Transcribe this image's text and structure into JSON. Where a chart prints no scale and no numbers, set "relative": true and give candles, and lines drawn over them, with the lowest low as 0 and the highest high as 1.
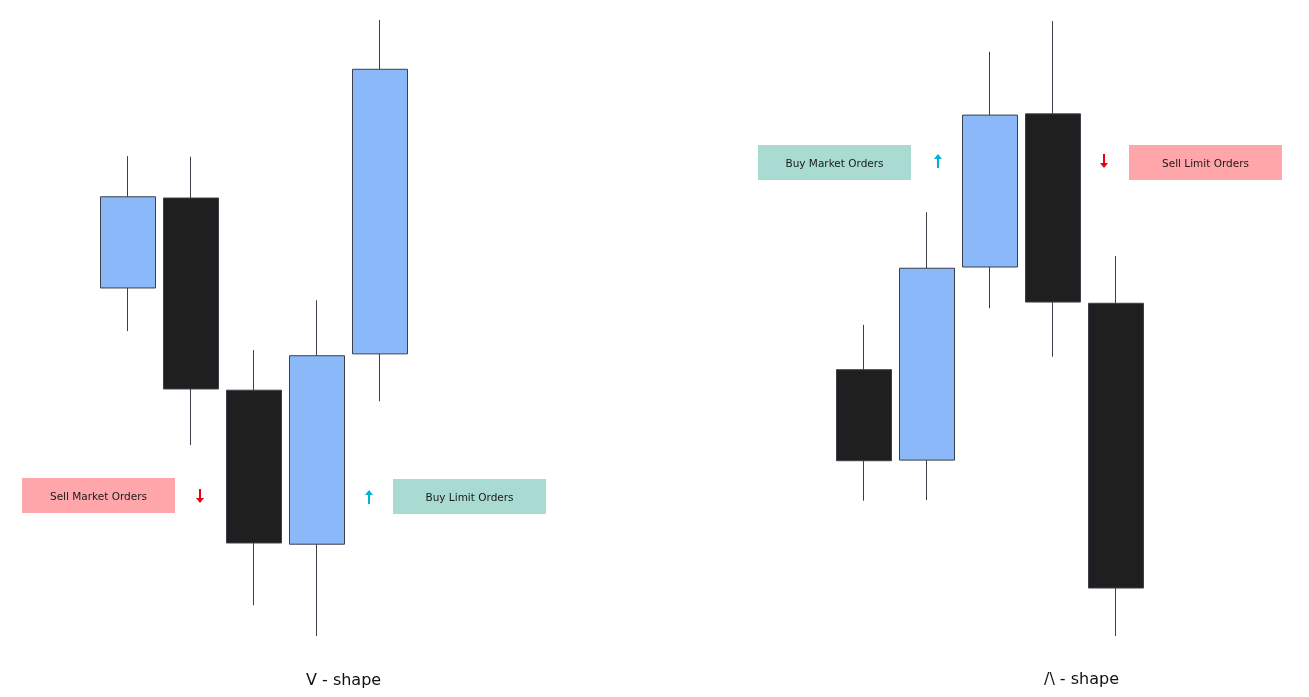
{
  "chart_data": [
    {
      "type": "candlestick",
      "xlabel": "V - shape",
      "categories": [
        null,
        null,
        null,
        null,
        null
      ],
      "relative": true,
      "ohlc": [
        [
          0.565,
          0.779,
          0.495,
          0.713
        ],
        [
          0.711,
          0.778,
          0.31,
          0.401
        ],
        [
          0.399,
          0.464,
          0.05,
          0.151
        ],
        [
          0.149,
          0.545,
          0,
          0.455
        ],
        [
          0.458,
          1,
          0.381,
          0.92
        ]
      ],
      "colors": [
        "#8ab8f8",
        "#1f1f1f",
        "#1f1f1f",
        "#8ab8f8",
        "#8ab8f8"
      ],
      "annotations": [
        "Sell Market Orders",
        "Buy Limit Orders"
      ]
    },
    {
      "type": "candlestick",
      "xlabel": "/\\ - shape",
      "categories": [
        null,
        null,
        null,
        null,
        null
      ],
      "relative": true,
      "ohlc": [
        [
          0.433,
          0.506,
          0.22,
          0.285
        ],
        [
          0.286,
          0.689,
          0.221,
          0.598
        ],
        [
          0.6,
          0.95,
          0.533,
          0.847
        ],
        [
          0.849,
          1,
          0.454,
          0.543
        ],
        [
          0.541,
          0.618,
          0,
          0.078
        ]
      ],
      "colors": [
        "#1f1f1f",
        "#8ab8f8",
        "#8ab8f8",
        "#1f1f1f",
        "#1f1f1f"
      ],
      "annotations": [
        "Buy Market Orders",
        "Sell Limit Orders"
      ]
    }
  ]
}
